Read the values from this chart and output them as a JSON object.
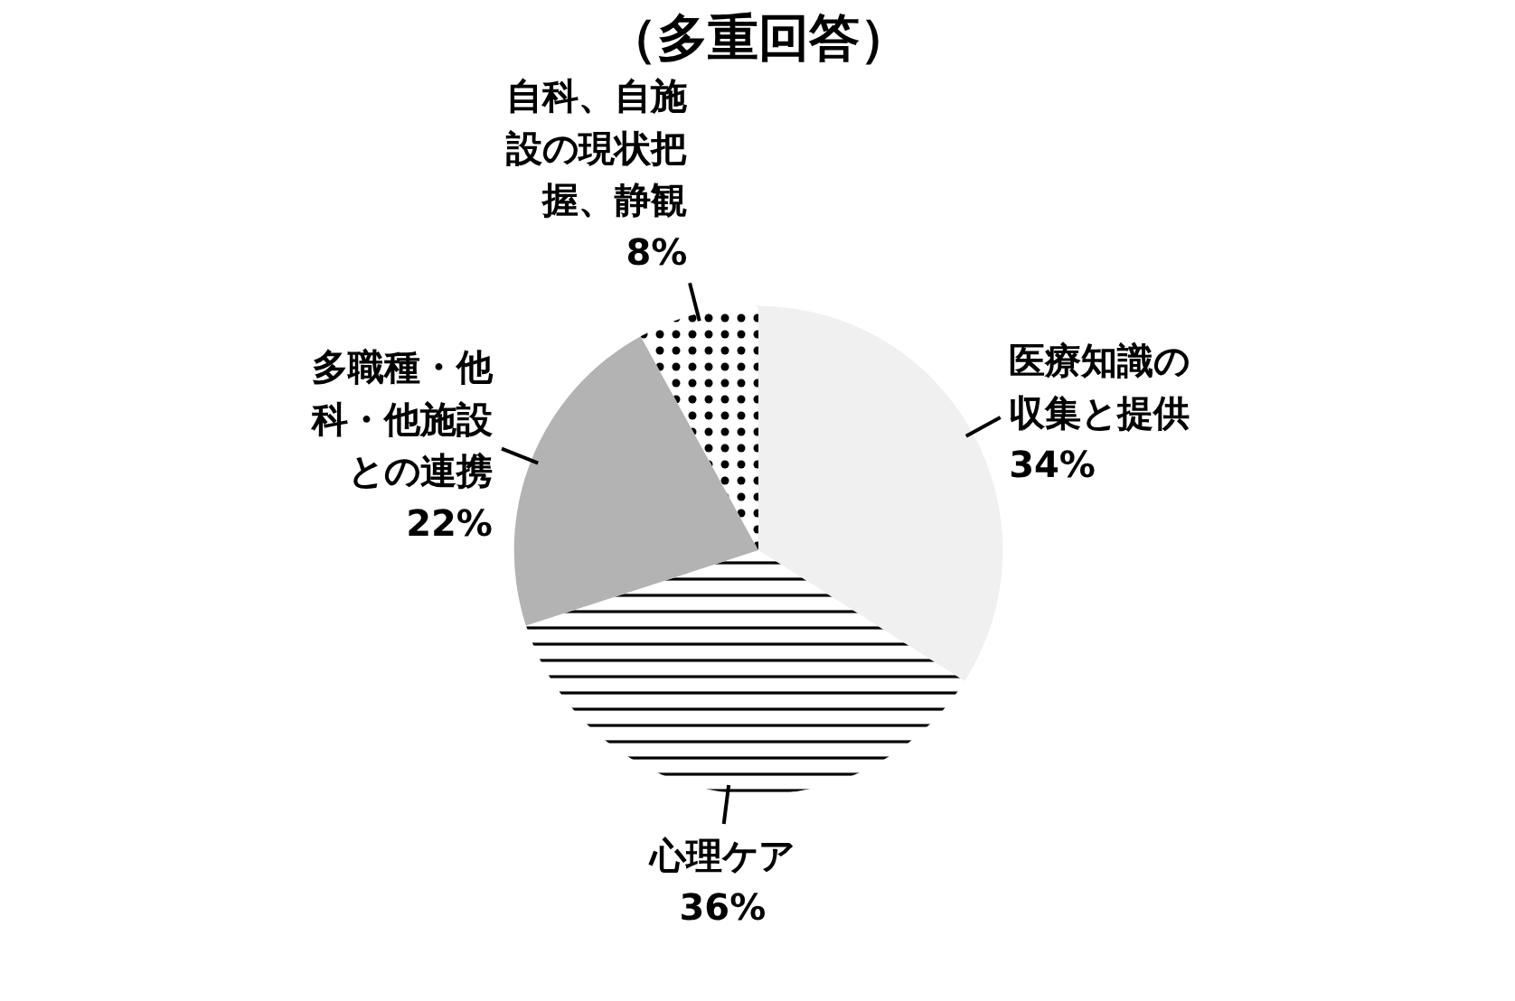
{
  "chart_data": {
    "type": "pie",
    "title": "（多重回答）",
    "categories": [
      "医療知識の収集と提供",
      "心理ケア",
      "多職種・他科・他施設との連携",
      "自科、自施設の現状把握、静観"
    ],
    "values": [
      34,
      36,
      22,
      8
    ],
    "colors": [
      "#f0f0f0",
      "#ffffff",
      "#b3b3b3",
      "#ffffff"
    ],
    "value_labels": [
      "34%",
      "36%",
      "22%",
      "8%"
    ]
  }
}
